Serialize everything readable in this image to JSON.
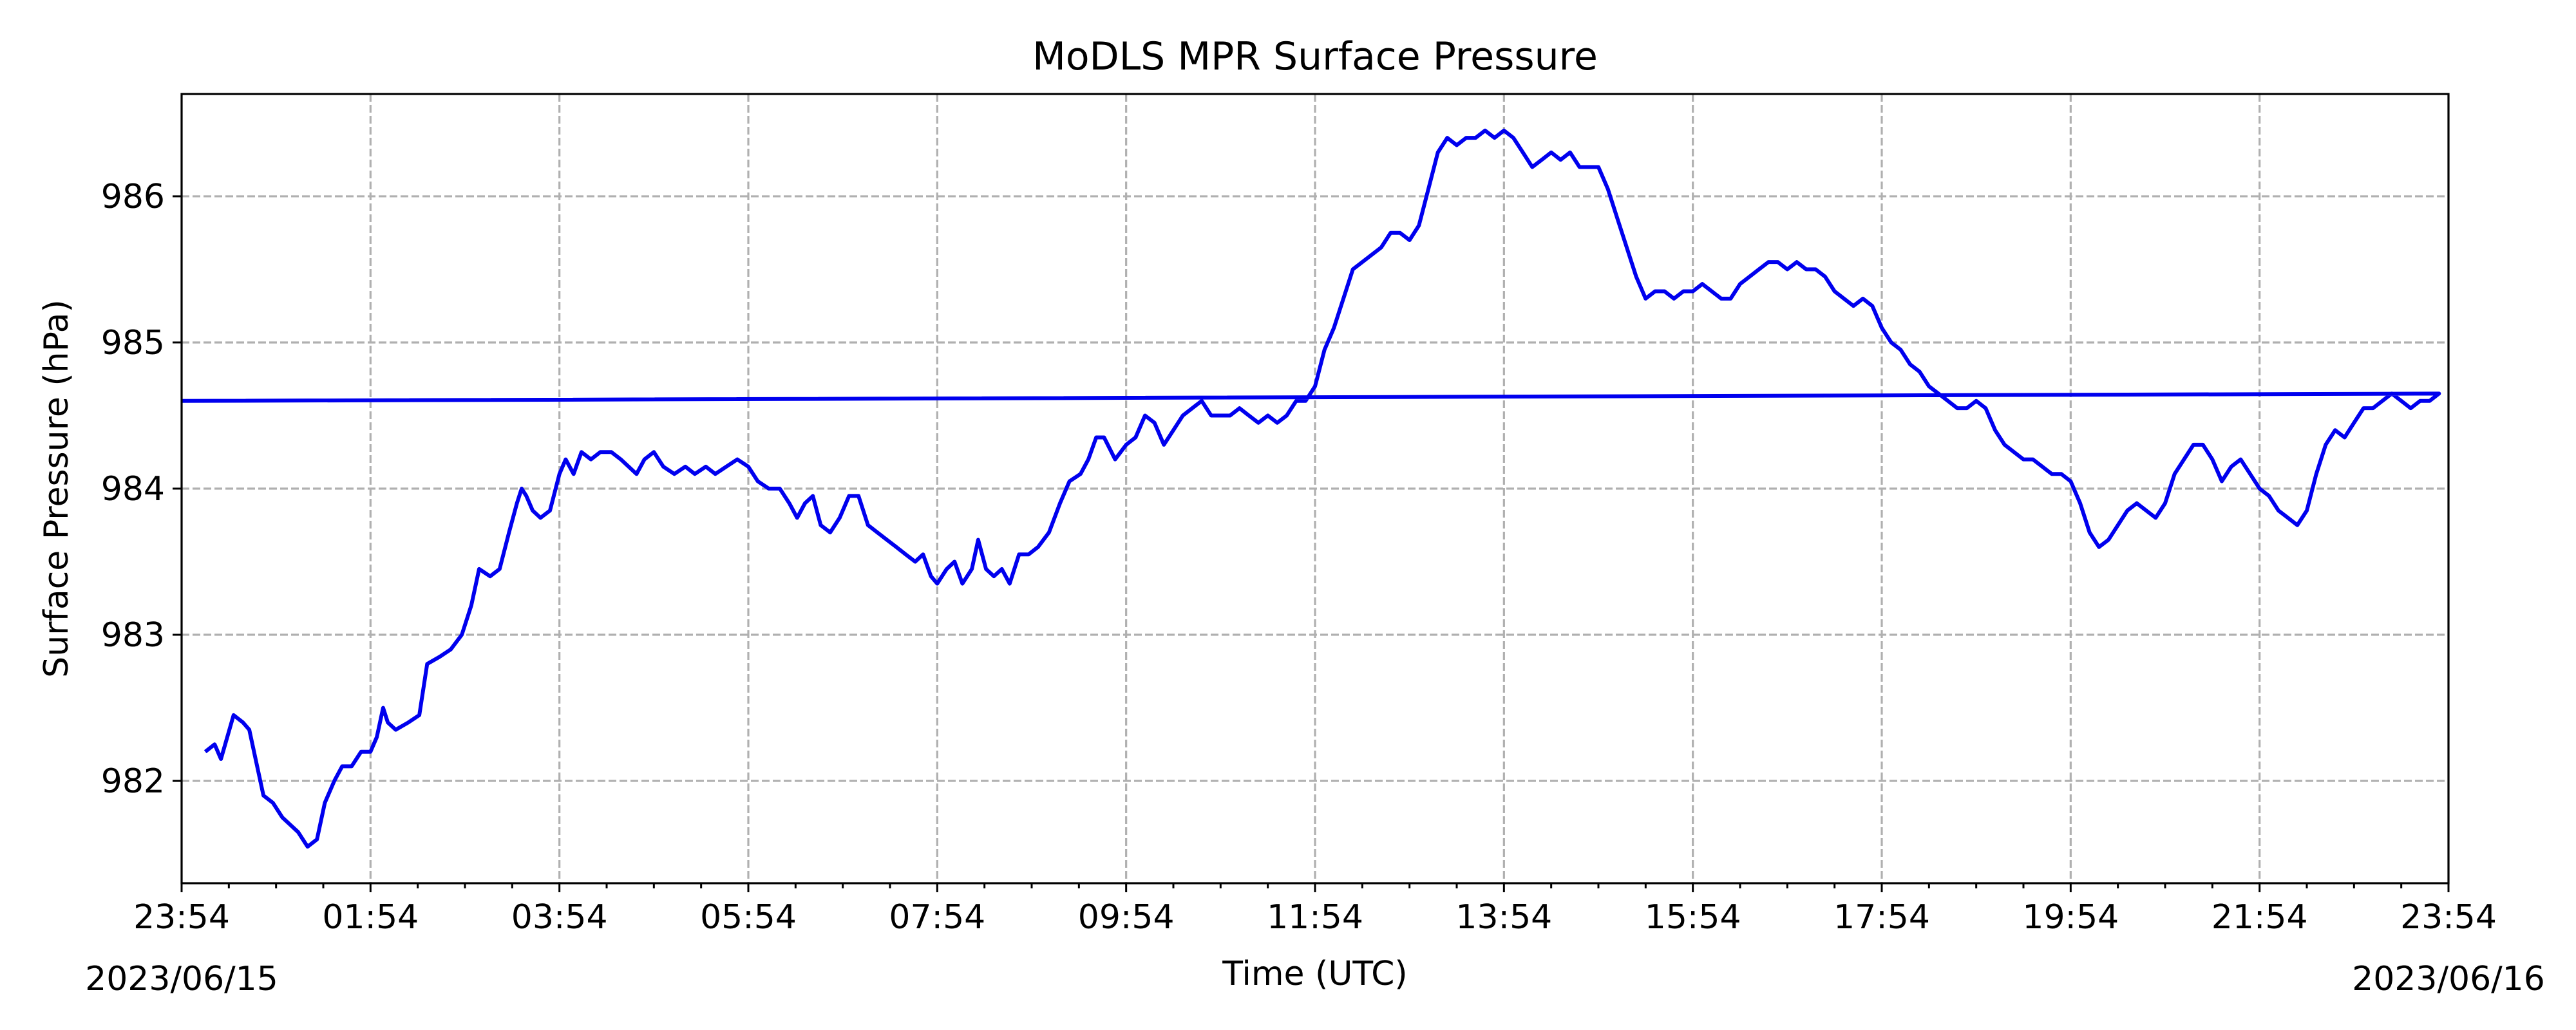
{
  "chart_data": {
    "type": "line",
    "title": "MoDLS MPR Surface Pressure",
    "xlabel": "Time (UTC)",
    "ylabel": "Surface Pressure (hPa)",
    "x_unit": "time (HH:MM)",
    "xlim": [
      "2023/06/15 23:54",
      "2023/06/16 23:54"
    ],
    "ylim": [
      981.3,
      986.7
    ],
    "grid": true,
    "x_tick_labels": [
      "23:54",
      "01:54",
      "03:54",
      "05:54",
      "07:54",
      "09:54",
      "11:54",
      "13:54",
      "15:54",
      "17:54",
      "19:54",
      "21:54",
      "23:54"
    ],
    "x_tick_date_labels": {
      "start": "2023/06/15",
      "end": "2023/06/16"
    },
    "y_ticks": [
      982,
      983,
      984,
      985,
      986
    ],
    "series": [
      {
        "color": "#0000ee",
        "points": [
          [
            "00:09",
            982.2
          ],
          [
            "00:15",
            982.25
          ],
          [
            "00:19",
            982.15
          ],
          [
            "00:23",
            982.3
          ],
          [
            "00:27",
            982.45
          ],
          [
            "00:33",
            982.4
          ],
          [
            "00:37",
            982.35
          ],
          [
            "00:42",
            982.1
          ],
          [
            "00:46",
            981.9
          ],
          [
            "00:52",
            981.85
          ],
          [
            "00:58",
            981.75
          ],
          [
            "01:03",
            981.7
          ],
          [
            "01:08",
            981.65
          ],
          [
            "01:14",
            981.55
          ],
          [
            "01:20",
            981.6
          ],
          [
            "01:25",
            981.85
          ],
          [
            "01:31",
            982.0
          ],
          [
            "01:36",
            982.1
          ],
          [
            "01:42",
            982.1
          ],
          [
            "01:48",
            982.2
          ],
          [
            "01:54",
            982.2
          ],
          [
            "01:58",
            982.3
          ],
          [
            "02:02",
            982.5
          ],
          [
            "02:05",
            982.4
          ],
          [
            "02:10",
            982.35
          ],
          [
            "02:18",
            982.4
          ],
          [
            "02:25",
            982.45
          ],
          [
            "02:30",
            982.8
          ],
          [
            "02:38",
            982.85
          ],
          [
            "02:45",
            982.9
          ],
          [
            "02:52",
            983.0
          ],
          [
            "02:58",
            983.2
          ],
          [
            "03:03",
            983.45
          ],
          [
            "03:10",
            983.4
          ],
          [
            "03:16",
            983.45
          ],
          [
            "03:22",
            983.7
          ],
          [
            "03:27",
            983.9
          ],
          [
            "03:30",
            984.0
          ],
          [
            "03:33",
            983.95
          ],
          [
            "03:37",
            983.85
          ],
          [
            "03:42",
            983.8
          ],
          [
            "03:48",
            983.85
          ],
          [
            "03:54",
            984.1
          ],
          [
            "03:58",
            984.2
          ],
          [
            "04:03",
            984.1
          ],
          [
            "04:08",
            984.25
          ],
          [
            "04:14",
            984.2
          ],
          [
            "04:20",
            984.25
          ],
          [
            "04:27",
            984.25
          ],
          [
            "04:33",
            984.2
          ],
          [
            "04:38",
            984.15
          ],
          [
            "04:43",
            984.1
          ],
          [
            "04:48",
            984.2
          ],
          [
            "04:54",
            984.25
          ],
          [
            "05:00",
            984.15
          ],
          [
            "05:07",
            984.1
          ],
          [
            "05:14",
            984.15
          ],
          [
            "05:20",
            984.1
          ],
          [
            "05:27",
            984.15
          ],
          [
            "05:33",
            984.1
          ],
          [
            "05:40",
            984.15
          ],
          [
            "05:47",
            984.2
          ],
          [
            "05:54",
            984.15
          ],
          [
            "06:00",
            984.05
          ],
          [
            "06:07",
            984.0
          ],
          [
            "06:14",
            984.0
          ],
          [
            "06:20",
            983.9
          ],
          [
            "06:25",
            983.8
          ],
          [
            "06:30",
            983.9
          ],
          [
            "06:35",
            983.95
          ],
          [
            "06:40",
            983.75
          ],
          [
            "06:46",
            983.7
          ],
          [
            "06:52",
            983.8
          ],
          [
            "06:58",
            983.95
          ],
          [
            "07:04",
            983.95
          ],
          [
            "07:10",
            983.75
          ],
          [
            "07:16",
            983.7
          ],
          [
            "07:22",
            983.65
          ],
          [
            "07:28",
            983.6
          ],
          [
            "07:34",
            983.55
          ],
          [
            "07:40",
            983.5
          ],
          [
            "07:45",
            983.55
          ],
          [
            "07:50",
            983.4
          ],
          [
            "07:54",
            983.35
          ],
          [
            "08:00",
            983.45
          ],
          [
            "08:05",
            983.5
          ],
          [
            "08:10",
            983.35
          ],
          [
            "08:16",
            983.45
          ],
          [
            "08:20",
            983.65
          ],
          [
            "08:25",
            983.45
          ],
          [
            "08:30",
            983.4
          ],
          [
            "08:35",
            983.45
          ],
          [
            "08:40",
            983.35
          ],
          [
            "08:46",
            983.55
          ],
          [
            "08:52",
            983.55
          ],
          [
            "08:58",
            983.6
          ],
          [
            "09:05",
            983.7
          ],
          [
            "09:12",
            983.9
          ],
          [
            "09:18",
            984.05
          ],
          [
            "09:25",
            984.1
          ],
          [
            "09:30",
            984.2
          ],
          [
            "09:35",
            984.35
          ],
          [
            "09:40",
            984.35
          ],
          [
            "09:47",
            984.2
          ],
          [
            "09:54",
            984.3
          ],
          [
            "10:00",
            984.35
          ],
          [
            "10:06",
            984.5
          ],
          [
            "10:12",
            984.45
          ],
          [
            "10:18",
            984.3
          ],
          [
            "10:24",
            984.4
          ],
          [
            "10:30",
            984.5
          ],
          [
            "10:36",
            984.55
          ],
          [
            "10:42",
            984.6
          ],
          [
            "10:48",
            984.5
          ],
          [
            "10:54",
            984.5
          ],
          [
            "11:00",
            984.5
          ],
          [
            "11:06",
            984.55
          ],
          [
            "11:12",
            984.5
          ],
          [
            "11:18",
            984.45
          ],
          [
            "11:24",
            984.5
          ],
          [
            "11:30",
            984.45
          ],
          [
            "11:36",
            984.5
          ],
          [
            "11:42",
            984.6
          ],
          [
            "11:48",
            984.6
          ],
          [
            "11:54",
            984.7
          ],
          [
            "12:00",
            984.95
          ],
          [
            "12:06",
            985.1
          ],
          [
            "12:12",
            985.3
          ],
          [
            "12:18",
            985.5
          ],
          [
            "12:24",
            985.55
          ],
          [
            "12:30",
            985.6
          ],
          [
            "12:36",
            985.65
          ],
          [
            "12:42",
            985.75
          ],
          [
            "12:48",
            985.75
          ],
          [
            "12:54",
            985.7
          ],
          [
            "13:00",
            985.8
          ],
          [
            "13:06",
            986.05
          ],
          [
            "13:12",
            986.3
          ],
          [
            "13:18",
            986.4
          ],
          [
            "13:24",
            986.35
          ],
          [
            "13:30",
            986.4
          ],
          [
            "13:36",
            986.4
          ],
          [
            "13:42",
            986.45
          ],
          [
            "13:48",
            986.4
          ],
          [
            "13:54",
            986.45
          ],
          [
            "14:00",
            986.4
          ],
          [
            "14:06",
            986.3
          ],
          [
            "14:12",
            986.2
          ],
          [
            "14:18",
            986.25
          ],
          [
            "14:24",
            986.3
          ],
          [
            "14:30",
            986.25
          ],
          [
            "14:36",
            986.3
          ],
          [
            "14:42",
            986.2
          ],
          [
            "14:48",
            986.2
          ],
          [
            "14:54",
            986.2
          ],
          [
            "15:00",
            986.05
          ],
          [
            "15:06",
            985.85
          ],
          [
            "15:12",
            985.65
          ],
          [
            "15:18",
            985.45
          ],
          [
            "15:24",
            985.3
          ],
          [
            "15:30",
            985.35
          ],
          [
            "15:36",
            985.35
          ],
          [
            "15:42",
            985.3
          ],
          [
            "15:48",
            985.35
          ],
          [
            "15:54",
            985.35
          ],
          [
            "16:00",
            985.4
          ],
          [
            "16:06",
            985.35
          ],
          [
            "16:12",
            985.3
          ],
          [
            "16:18",
            985.3
          ],
          [
            "16:24",
            985.4
          ],
          [
            "16:30",
            985.45
          ],
          [
            "16:36",
            985.5
          ],
          [
            "16:42",
            985.55
          ],
          [
            "16:48",
            985.55
          ],
          [
            "16:54",
            985.5
          ],
          [
            "17:00",
            985.55
          ],
          [
            "17:06",
            985.5
          ],
          [
            "17:12",
            985.5
          ],
          [
            "17:18",
            985.45
          ],
          [
            "17:24",
            985.35
          ],
          [
            "17:30",
            985.3
          ],
          [
            "17:36",
            985.25
          ],
          [
            "17:42",
            985.3
          ],
          [
            "17:48",
            985.25
          ],
          [
            "17:54",
            985.1
          ],
          [
            "18:00",
            985.0
          ],
          [
            "18:06",
            984.95
          ],
          [
            "18:12",
            984.85
          ],
          [
            "18:18",
            984.8
          ],
          [
            "18:24",
            984.7
          ],
          [
            "18:30",
            984.65
          ],
          [
            "18:36",
            984.6
          ],
          [
            "18:42",
            984.55
          ],
          [
            "18:48",
            984.55
          ],
          [
            "18:54",
            984.6
          ],
          [
            "19:00",
            984.55
          ],
          [
            "19:06",
            984.4
          ],
          [
            "19:12",
            984.3
          ],
          [
            "19:18",
            984.25
          ],
          [
            "19:24",
            984.2
          ],
          [
            "19:30",
            984.2
          ],
          [
            "19:36",
            984.15
          ],
          [
            "19:42",
            984.1
          ],
          [
            "19:48",
            984.1
          ],
          [
            "19:54",
            984.05
          ],
          [
            "20:00",
            983.9
          ],
          [
            "20:06",
            983.7
          ],
          [
            "20:12",
            983.6
          ],
          [
            "20:18",
            983.65
          ],
          [
            "20:24",
            983.75
          ],
          [
            "20:30",
            983.85
          ],
          [
            "20:36",
            983.9
          ],
          [
            "20:42",
            983.85
          ],
          [
            "20:48",
            983.8
          ],
          [
            "20:54",
            983.9
          ],
          [
            "21:00",
            984.1
          ],
          [
            "21:06",
            984.2
          ],
          [
            "21:12",
            984.3
          ],
          [
            "21:18",
            984.3
          ],
          [
            "21:24",
            984.2
          ],
          [
            "21:30",
            984.05
          ],
          [
            "21:36",
            984.15
          ],
          [
            "21:42",
            984.2
          ],
          [
            "21:48",
            984.1
          ],
          [
            "21:54",
            984.0
          ],
          [
            "22:00",
            983.95
          ],
          [
            "22:06",
            983.85
          ],
          [
            "22:12",
            983.8
          ],
          [
            "22:18",
            983.75
          ],
          [
            "22:24",
            983.85
          ],
          [
            "22:30",
            984.1
          ],
          [
            "22:36",
            984.3
          ],
          [
            "22:42",
            984.4
          ],
          [
            "22:48",
            984.35
          ],
          [
            "22:54",
            984.45
          ],
          [
            "23:00",
            984.55
          ],
          [
            "23:06",
            984.55
          ],
          [
            "23:12",
            984.6
          ],
          [
            "23:18",
            984.65
          ],
          [
            "23:24",
            984.6
          ],
          [
            "23:30",
            984.55
          ],
          [
            "23:36",
            984.6
          ],
          [
            "23:42",
            984.6
          ],
          [
            "23:48",
            984.65
          ],
          [
            "23:54",
            984.6
          ]
        ]
      }
    ]
  }
}
